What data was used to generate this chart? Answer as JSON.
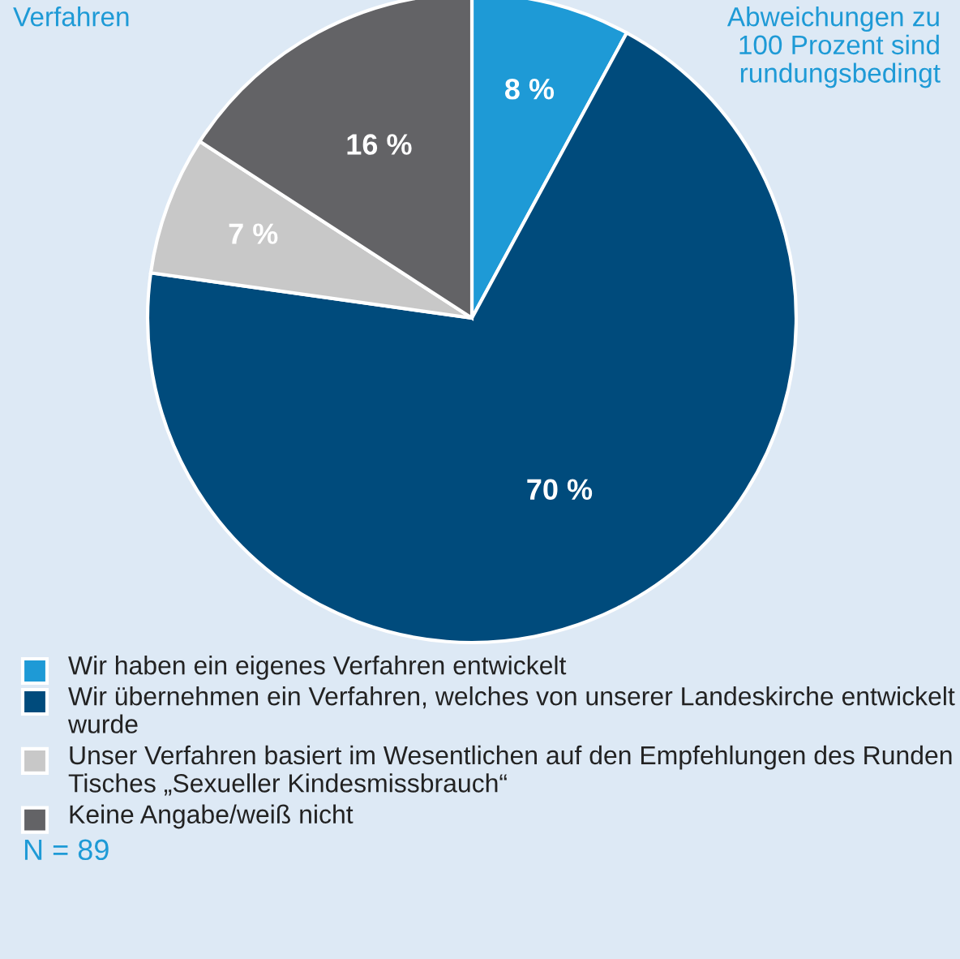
{
  "chart_data": {
    "type": "pie",
    "categories": [
      "Wir haben ein eigenes Verfahren entwickelt",
      "Wir übernehmen ein Verfahren, welches von unserer Landeskirche entwickelt wurde",
      "Unser Verfahren basiert im Wesentlichen auf den Empfehlungen des Runden Tisches „Sexueller Kindesmissbrauch“",
      "Keine Angabe/weiß nicht"
    ],
    "values": [
      8,
      70,
      7,
      16
    ],
    "colors": [
      "#1e9ad6",
      "#004b7c",
      "#c8c8c8",
      "#636366"
    ],
    "value_labels": [
      "8 %",
      "70 %",
      "7 %",
      "16 %"
    ],
    "legend": "bottom",
    "annotations": [
      "Verfahren",
      "Abweichungen zu 100 Prozent sind rundungsbedingt",
      "N = 89"
    ]
  }
}
